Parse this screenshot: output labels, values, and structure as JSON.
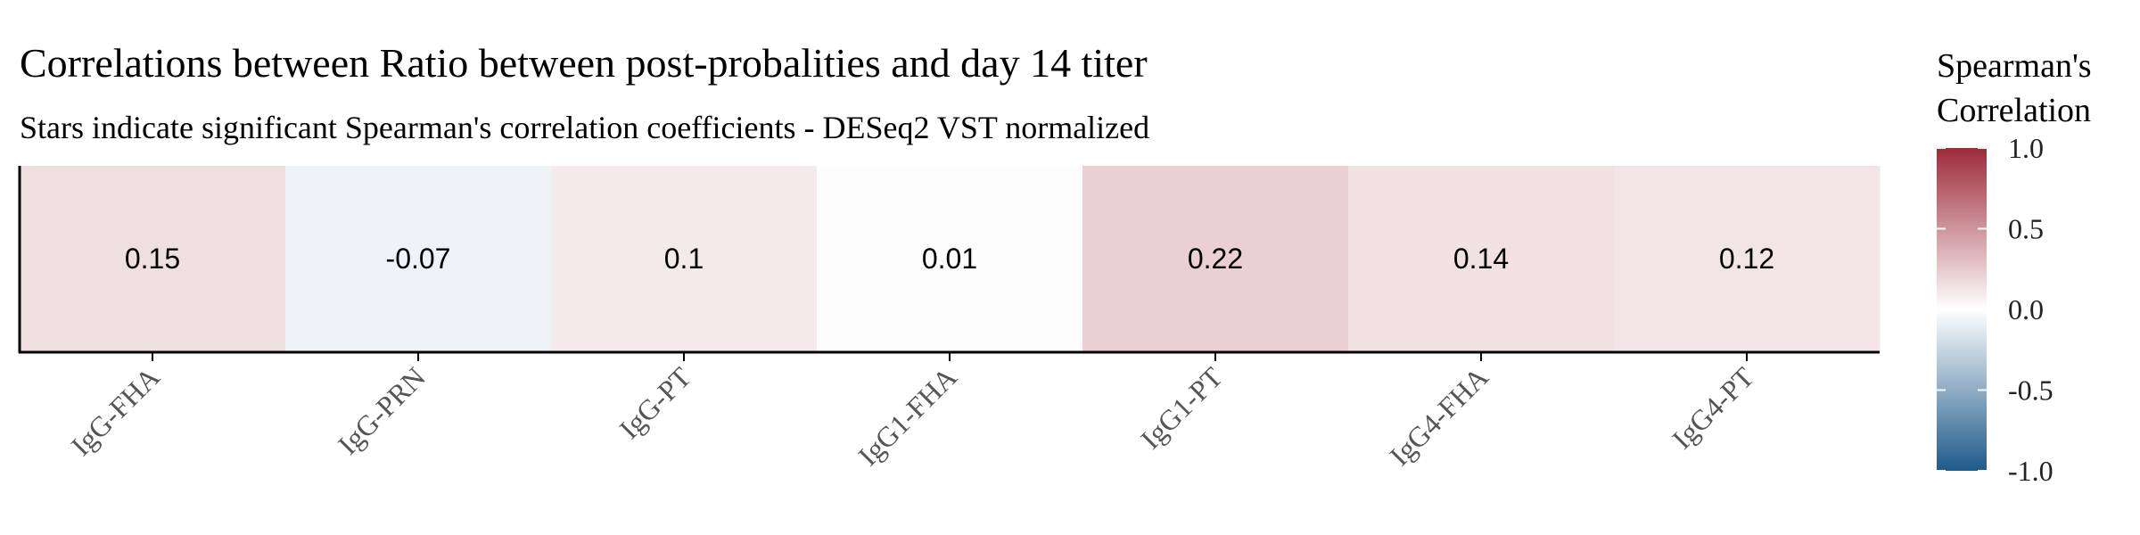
{
  "chart_data": {
    "type": "heatmap",
    "title": "Correlations between Ratio between post-probalities and day 14 titer",
    "subtitle": "Stars indicate significant Spearman's correlation coefficients - DESeq2 VST normalized",
    "categories": [
      "IgG-FHA",
      "IgG-PRN",
      "IgG-PT",
      "IgG1-FHA",
      "IgG1-PT",
      "IgG4-FHA",
      "IgG4-PT"
    ],
    "values": [
      0.15,
      -0.07,
      0.1,
      0.01,
      0.22,
      0.14,
      0.12
    ],
    "value_labels": [
      "0.15",
      "-0.07",
      "0.1",
      "0.01",
      "0.22",
      "0.14",
      "0.12"
    ],
    "legend": {
      "title_line1": "Spearman's",
      "title_line2": "Correlation",
      "ticks": [
        1.0,
        0.5,
        0.0,
        -0.5,
        -1.0
      ],
      "tick_labels": [
        "1.0",
        "0.5",
        "0.0",
        "-0.5",
        "-1.0"
      ],
      "range": [
        -1.0,
        1.0
      ],
      "placement": "right"
    },
    "colors": {
      "low": "#1f5a8a",
      "mid": "#ffffff",
      "high": "#9e2a3a"
    },
    "grid": false
  }
}
